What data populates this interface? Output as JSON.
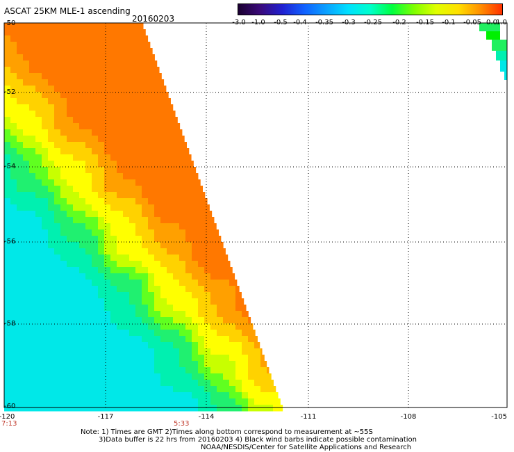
{
  "header": {
    "title": "ASCAT 25KM MLE-1 ascending",
    "date": "20160203"
  },
  "colorbar": {
    "labels": [
      "-3.0",
      "-1.0",
      "-0.5",
      "-0.4",
      "-0.35",
      "-0.3",
      "-0.25",
      "-0.2",
      "-0.15",
      "-0.1",
      "-0.05",
      "0.0",
      "1.0"
    ],
    "colors": [
      "#1a0030",
      "#3a0a7a",
      "#2020d0",
      "#1060ff",
      "#0aa0ff",
      "#00e0ff",
      "#00ffcc",
      "#00ff40",
      "#80ff00",
      "#e0ff00",
      "#ffe000",
      "#ff9000",
      "#ff3000"
    ]
  },
  "axes": {
    "lat_labels": [
      "-50",
      "-52",
      "-54",
      "-56",
      "-58",
      "-60"
    ],
    "lon_labels": [
      "-120",
      "-117",
      "-114",
      "-111",
      "-108",
      "-105"
    ],
    "time_labels": [
      "7:13",
      "5:33"
    ]
  },
  "notes": [
    "Note: 1) Times are GMT 2)Times along bottom correspond to measurement at ~55S",
    "3)Data buffer is 22 hrs from 20160203 4) Black wind barbs indicate possible contamination",
    "NOAA/NESDIS/Center for Satellite Applications and Research"
  ]
}
